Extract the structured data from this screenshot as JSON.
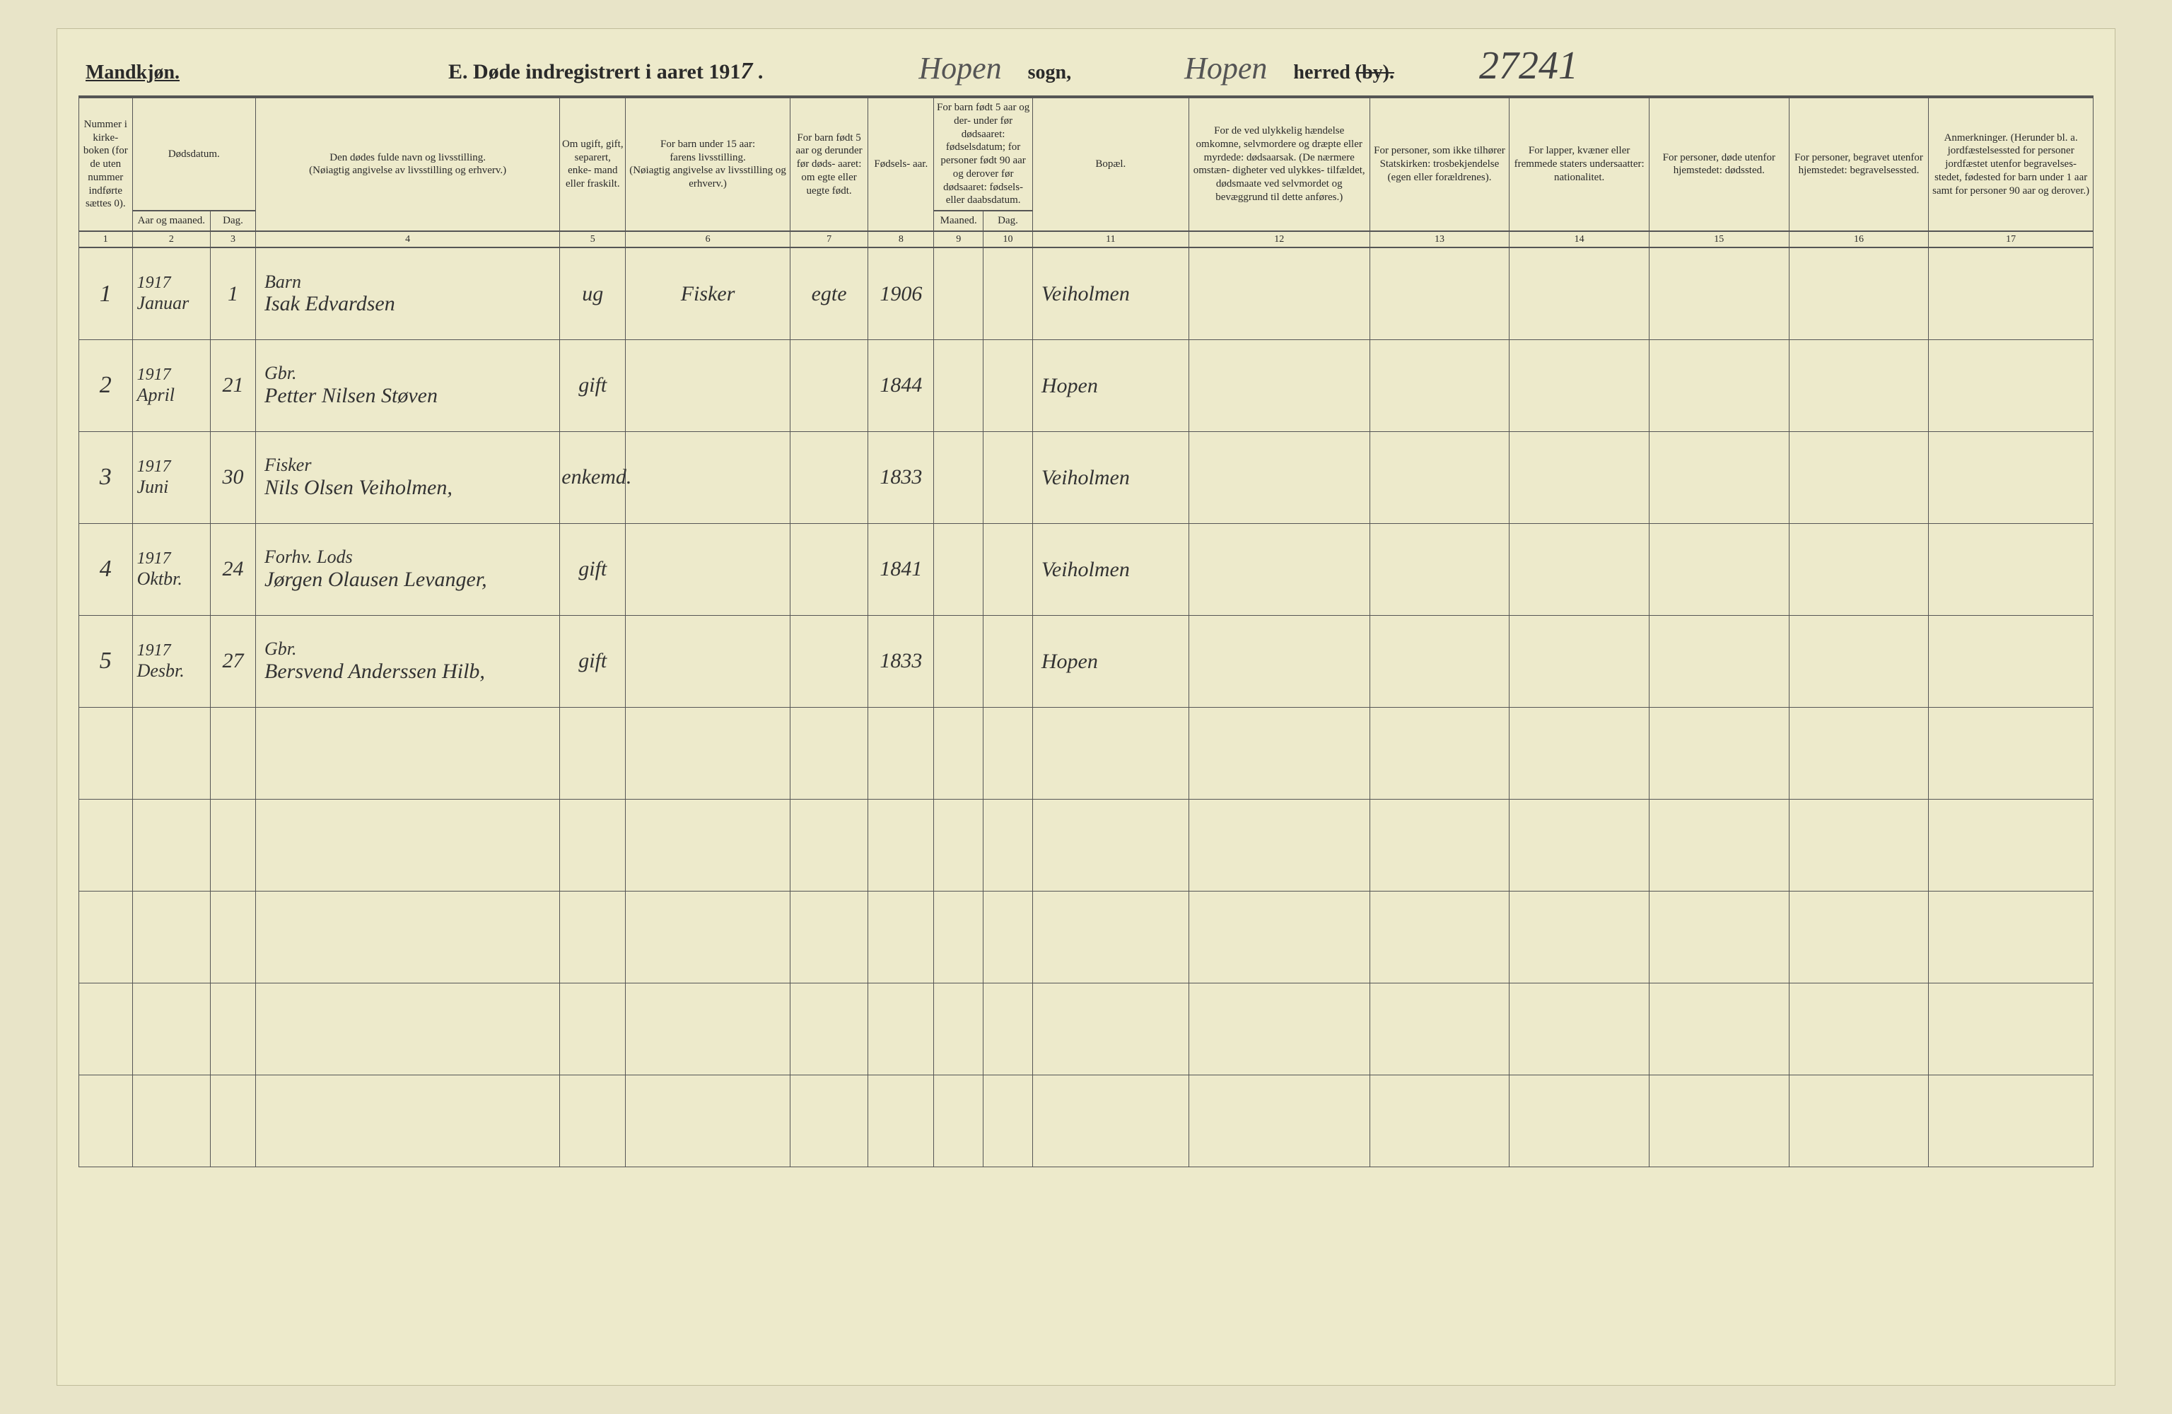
{
  "header": {
    "gender": "Mandkjøn.",
    "title_prefix": "E.  Døde indregistrert i aaret 191",
    "year_suffix": "7",
    "sogn_value": "Hopen",
    "sogn_label": "sogn,",
    "herred_value": "Hopen",
    "herred_label_a": "herred",
    "herred_label_b": "(by).",
    "page_number": "27241"
  },
  "columns": {
    "h1": "Nummer i kirke- boken (for de uten nummer indførte sættes 0).",
    "h2_top": "Dødsdatum.",
    "h2a": "Aar og maaned.",
    "h2b": "Dag.",
    "h4a": "Den dødes fulde navn og livsstilling.",
    "h4b": "(Nøiagtig angivelse av livsstilling og erhverv.)",
    "h5": "Om ugift, gift, separert, enke- mand eller fraskilt.",
    "h6a": "For barn under 15 aar:",
    "h6b": "farens livsstilling.",
    "h6c": "(Nøiagtig angivelse av livsstilling og erhverv.)",
    "h7": "For barn født 5 aar og derunder før døds- aaret: om egte eller uegte født.",
    "h8": "Fødsels- aar.",
    "h9_top": "For barn født 5 aar og der- under før dødsaaret: fødselsdatum; for personer født 90 aar og derover før dødsaaret: fødsels- eller daabsdatum.",
    "h9": "Maaned.",
    "h10": "Dag.",
    "h11": "Bopæl.",
    "h12": "For de ved ulykkelig hændelse omkomne, selvmordere og dræpte eller myrdede: dødsaarsak. (De nærmere omstæn- digheter ved ulykkes- tilfældet, dødsmaate ved selvmordet og bevæggrund til dette anføres.)",
    "h13": "For personer, som ikke tilhører Statskirken: trosbekjendelse (egen eller forældrenes).",
    "h14": "For lapper, kvæner eller fremmede staters undersaatter: nationalitet.",
    "h15": "For personer, døde utenfor hjemstedet: dødssted.",
    "h16": "For personer, begravet utenfor hjemstedet: begravelsessted.",
    "h17": "Anmerkninger. (Herunder bl. a. jordfæstelsessted for personer jordfæstet utenfor begravelses- stedet, fødested for barn under 1 aar samt for personer 90 aar og derover.)",
    "nums": [
      "1",
      "2",
      "3",
      "4",
      "5",
      "6",
      "7",
      "8",
      "9",
      "10",
      "11",
      "12",
      "13",
      "14",
      "15",
      "16",
      "17"
    ]
  },
  "rows": [
    {
      "n": "1",
      "yr": "1917",
      "mo": "Januar",
      "day": "1",
      "occ": "Barn",
      "name": "Isak Edvardsen",
      "stat": "ug",
      "father": "Fisker",
      "egte": "egte",
      "fyr": "1906",
      "fmo": "",
      "fday": "",
      "bopel": "Veiholmen"
    },
    {
      "n": "2",
      "yr": "1917",
      "mo": "April",
      "day": "21",
      "occ": "Gbr.",
      "name": "Petter Nilsen Støven",
      "stat": "gift",
      "father": "",
      "egte": "",
      "fyr": "1844",
      "fmo": "",
      "fday": "",
      "bopel": "Hopen"
    },
    {
      "n": "3",
      "yr": "1917",
      "mo": "Juni",
      "day": "30",
      "occ": "Fisker",
      "name": "Nils Olsen Veiholmen,",
      "stat": "enkemd.",
      "father": "",
      "egte": "",
      "fyr": "1833",
      "fmo": "",
      "fday": "",
      "bopel": "Veiholmen"
    },
    {
      "n": "4",
      "yr": "1917",
      "mo": "Oktbr.",
      "day": "24",
      "occ": "Forhv. Lods",
      "name": "Jørgen Olausen Levanger,",
      "stat": "gift",
      "father": "",
      "egte": "",
      "fyr": "1841",
      "fmo": "",
      "fday": "",
      "bopel": "Veiholmen"
    },
    {
      "n": "5",
      "yr": "1917",
      "mo": "Desbr.",
      "day": "27",
      "occ": "Gbr.",
      "name": "Bersvend Anderssen Hilb,",
      "stat": "gift",
      "father": "",
      "egte": "",
      "fyr": "1833",
      "fmo": "",
      "fday": "",
      "bopel": "Hopen"
    }
  ],
  "empty_rows": 5,
  "style": {
    "page_bg": "#edeacb",
    "line_color": "#555555",
    "script_color": "#333333",
    "header_font_size": 28,
    "cell_font_size": 30
  }
}
